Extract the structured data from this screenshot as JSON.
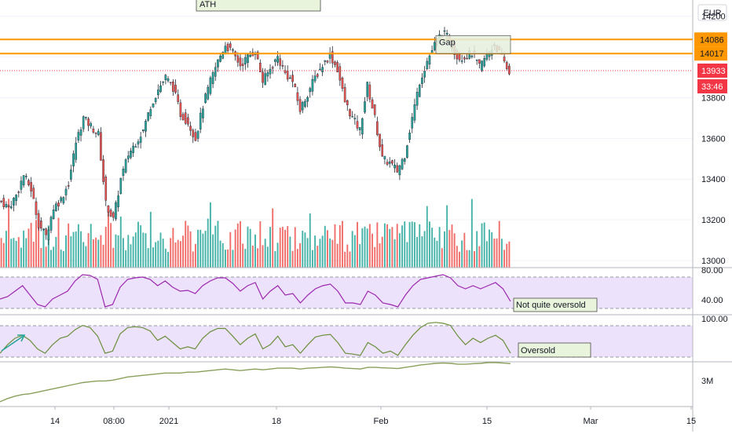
{
  "toolbar": {
    "currency": "EUR"
  },
  "chart_data": {
    "type": "candlestick",
    "y_axis": {
      "ticks": [
        13000,
        13200,
        13400,
        13600,
        13800,
        14000,
        14200
      ],
      "range": [
        12965,
        14280
      ]
    },
    "x_axis": {
      "labels": [
        "14",
        "08:00",
        "2021",
        "18",
        "Feb",
        "15",
        "Mar",
        "15"
      ]
    },
    "price_levels": [
      {
        "label": "14086",
        "value": 14086,
        "color": "#ff9800"
      },
      {
        "label": "14017",
        "value": 14017,
        "color": "#ff9800"
      }
    ],
    "last_price": {
      "label": "13933",
      "value": 13933,
      "color": "#f23645"
    },
    "countdown": "33:46",
    "annotations": {
      "ath": "ATH",
      "gap": "Gap",
      "not_quite_oversold": "Not quite oversold",
      "oversold": "Oversold"
    },
    "close_path": [
      13290,
      13260,
      13320,
      13420,
      13350,
      13180,
      13120,
      13260,
      13300,
      13380,
      13580,
      13700,
      13660,
      13620,
      13280,
      13200,
      13400,
      13520,
      13580,
      13640,
      13760,
      13840,
      13900,
      13850,
      13720,
      13680,
      13600,
      13760,
      13880,
      13980,
      14060,
      14020,
      13960,
      14000,
      14030,
      13880,
      13940,
      14000,
      13920,
      13880,
      13740,
      13820,
      13900,
      13960,
      14010,
      13940,
      13780,
      13700,
      13640,
      13860,
      13700,
      13500,
      13480,
      13440,
      13520,
      13700,
      13880,
      13980,
      14060,
      14120,
      14090,
      14000,
      14000,
      14020,
      13950,
      14010,
      14060,
      14000,
      13920
    ],
    "rsi": {
      "levels": [
        {
          "label": "80.00",
          "value": 80
        },
        {
          "label": "40.00",
          "value": 40
        }
      ],
      "range": [
        25,
        85
      ],
      "values": [
        45,
        48,
        55,
        62,
        50,
        38,
        35,
        45,
        50,
        55,
        68,
        76,
        75,
        70,
        35,
        38,
        60,
        70,
        72,
        73,
        70,
        62,
        68,
        60,
        55,
        56,
        52,
        62,
        68,
        72,
        72,
        65,
        55,
        62,
        66,
        45,
        55,
        62,
        50,
        52,
        40,
        50,
        58,
        62,
        64,
        55,
        40,
        40,
        38,
        55,
        50,
        40,
        38,
        35,
        50,
        62,
        70,
        72,
        74,
        76,
        72,
        62,
        58,
        62,
        58,
        62,
        66,
        58,
        42
      ]
    },
    "oscillator": {
      "levels": [
        {
          "label": "100.00",
          "value": 100
        }
      ],
      "range": [
        0,
        110
      ],
      "values": [
        20,
        40,
        55,
        62,
        50,
        30,
        20,
        40,
        55,
        60,
        75,
        85,
        80,
        60,
        20,
        25,
        65,
        80,
        82,
        80,
        72,
        50,
        60,
        45,
        30,
        35,
        30,
        55,
        70,
        78,
        78,
        60,
        40,
        55,
        65,
        30,
        40,
        60,
        35,
        40,
        20,
        40,
        58,
        62,
        64,
        45,
        20,
        18,
        15,
        45,
        35,
        20,
        25,
        15,
        40,
        62,
        80,
        90,
        92,
        90,
        85,
        60,
        40,
        55,
        45,
        55,
        62,
        50,
        20
      ]
    },
    "obv": {
      "tick": {
        "label": "3M",
        "value": 3.0
      },
      "range": [
        1.2,
        4.0
      ],
      "values": [
        1.5,
        1.7,
        1.85,
        1.95,
        2.0,
        2.1,
        2.2,
        2.3,
        2.4,
        2.5,
        2.6,
        2.7,
        2.75,
        2.8,
        2.8,
        2.85,
        2.95,
        3.05,
        3.1,
        3.15,
        3.2,
        3.25,
        3.3,
        3.3,
        3.3,
        3.35,
        3.35,
        3.4,
        3.45,
        3.5,
        3.55,
        3.5,
        3.45,
        3.5,
        3.55,
        3.5,
        3.55,
        3.6,
        3.6,
        3.6,
        3.55,
        3.6,
        3.62,
        3.65,
        3.68,
        3.65,
        3.6,
        3.58,
        3.55,
        3.65,
        3.65,
        3.62,
        3.6,
        3.58,
        3.65,
        3.72,
        3.8,
        3.85,
        3.9,
        3.92,
        3.9,
        3.85,
        3.85,
        3.88,
        3.9,
        3.95,
        3.95,
        3.92,
        3.88
      ]
    }
  }
}
